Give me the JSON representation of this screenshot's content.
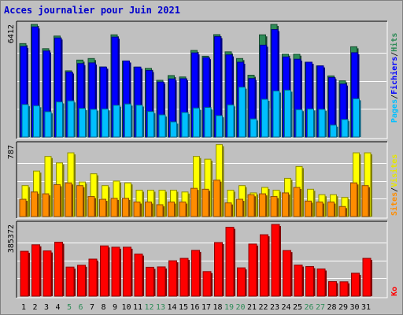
{
  "chart_data": {
    "type": "bar",
    "title": "Acces journalier pour Juin 2021",
    "days": [
      "1",
      "2",
      "3",
      "4",
      "5",
      "6",
      "7",
      "8",
      "9",
      "10",
      "11",
      "12",
      "13",
      "14",
      "15",
      "16",
      "17",
      "18",
      "19",
      "20",
      "21",
      "22",
      "23",
      "24",
      "25",
      "26",
      "27",
      "28",
      "29",
      "30",
      "31"
    ],
    "weekend_days": [
      "5",
      "6",
      "12",
      "13",
      "19",
      "20",
      "26",
      "27"
    ],
    "panels": [
      {
        "id": "hits-panel",
        "max_label": "6412",
        "ymax": 6412,
        "series": [
          {
            "name": "Hits",
            "color": "#2e8b57",
            "values": [
              5320,
              6412,
              5030,
              5750,
              3770,
              4380,
              4470,
              3990,
              5820,
              4330,
              3980,
              3910,
              3230,
              3500,
              3420,
              4930,
              4600,
              5830,
              4850,
              4470,
              3520,
              5820,
              6412,
              4720,
              4720,
              4260,
              4050,
              3480,
              3200,
              5140,
              0
            ]
          },
          {
            "name": "Fichiers",
            "color": "#0000ff",
            "values": [
              5160,
              6270,
              4900,
              5640,
              3700,
              4180,
              4220,
              3980,
              5690,
              4330,
              3980,
              3790,
              3130,
              3310,
              3320,
              4790,
              4520,
              5720,
              4680,
              4260,
              3330,
              5230,
              6120,
              4560,
              4430,
              4260,
              4050,
              3390,
              3020,
              4800,
              0
            ]
          },
          {
            "name": "Pages",
            "color": "#00bfff",
            "values": [
              1850,
              1780,
              1440,
              2000,
              2060,
              1630,
              1580,
              1600,
              1810,
              1880,
              1820,
              1450,
              1260,
              860,
              1400,
              1650,
              1680,
              1220,
              1830,
              2840,
              1030,
              2150,
              2620,
              2670,
              1560,
              1600,
              1580,
              680,
              1000,
              2180,
              0
            ]
          }
        ]
      },
      {
        "id": "visits-panel",
        "max_label": "787",
        "ymax": 787,
        "series": [
          {
            "name": "Visites",
            "color": "#ffff00",
            "values": [
              340,
              500,
              660,
              590,
              700,
              380,
              470,
              340,
              390,
              370,
              290,
              290,
              290,
              290,
              270,
              660,
              630,
              790,
              290,
              340,
              260,
              320,
              290,
              420,
              550,
              300,
              240,
              240,
              210,
              700,
              700
            ]
          },
          {
            "name": "Sites",
            "color": "#ff8c00",
            "values": [
              190,
              270,
              250,
              350,
              370,
              340,
              220,
              190,
              200,
              200,
              160,
              160,
              130,
              160,
              160,
              310,
              300,
              400,
              150,
              190,
              240,
              250,
              220,
              260,
              320,
              170,
              160,
              160,
              110,
              370,
              340
            ]
          }
        ]
      },
      {
        "id": "ko-panel",
        "max_label": "385372",
        "ymax": 385372,
        "series": [
          {
            "name": "Ko",
            "color": "#ff0000",
            "values": [
              241000,
              276000,
              243000,
              290000,
              156000,
              166000,
              199000,
              270000,
              263000,
              263000,
              226000,
              155000,
              157000,
              190000,
              203000,
              246000,
              132000,
              288000,
              370000,
              152000,
              280000,
              330000,
              385372,
              245000,
              167000,
              159000,
              146000,
              78000,
              77000,
              123000,
              203000
            ]
          }
        ]
      }
    ]
  }
}
